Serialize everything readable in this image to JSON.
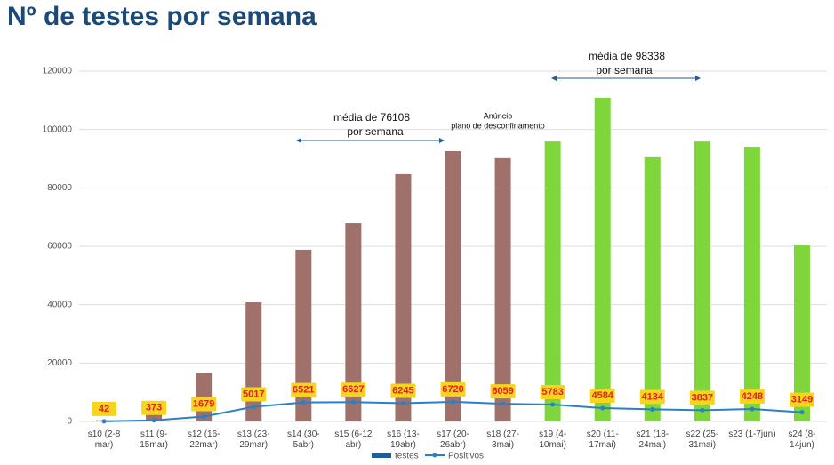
{
  "chart_data": {
    "type": "bar",
    "title": "Nº de testes por semana",
    "categories": [
      "s10 (2-8\nmar)",
      "s11 (9-\n15mar)",
      "s12 (16-\n22mar)",
      "s13 (23-\n29mar)",
      "s14 (30-\n5abr)",
      "s15 (6-12\nabr)",
      "s16 (13-\n19abr)",
      "s17 (20-\n26abr)",
      "s18 (27-\n3mai)",
      "s19 (4-\n10mai)",
      "s20 (11-\n17mai)",
      "s21 (18-\n24mai)",
      "s22 (25-\n31mai)",
      "s23 (1-7jun)",
      "s24 (8-\n14jun)"
    ],
    "series": [
      {
        "name": "testes",
        "color": "#1f5c99",
        "values": [
          400,
          2400,
          16700,
          40800,
          58800,
          67900,
          84700,
          92600,
          90200,
          95900,
          110900,
          90500,
          95900,
          94100,
          60300
        ],
        "bar_colors": [
          "#a0706a",
          "#a0706a",
          "#a0706a",
          "#a0706a",
          "#a0706a",
          "#a0706a",
          "#a0706a",
          "#a0706a",
          "#a0706a",
          "#7ed63a",
          "#7ed63a",
          "#7ed63a",
          "#7ed63a",
          "#7ed63a",
          "#7ed63a"
        ]
      },
      {
        "name": "Positivos",
        "color": "#2a80c6",
        "type": "line",
        "values": [
          42,
          373,
          1679,
          5017,
          6521,
          6627,
          6245,
          6720,
          6059,
          5783,
          4584,
          4134,
          3837,
          4248,
          3149
        ]
      }
    ],
    "annotations": [
      [
        "média de 76108",
        "por semana"
      ],
      [
        "Anúncio",
        "plano de desconfinamento"
      ],
      [
        "média de 98338",
        "por semana"
      ]
    ],
    "ylim": [
      0,
      120000
    ],
    "yticks": [
      0,
      20000,
      40000,
      60000,
      80000,
      100000,
      120000
    ],
    "grid": true
  }
}
